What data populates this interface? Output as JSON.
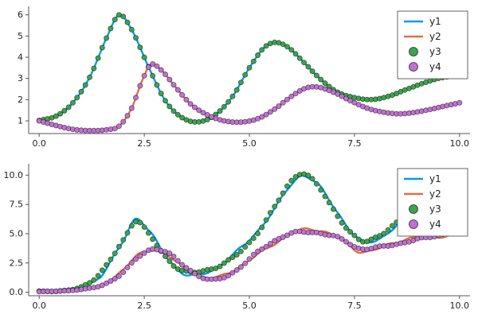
{
  "figure": {
    "background": "#ffffff"
  },
  "chart_data": [
    {
      "id": "top",
      "type": "line",
      "title": "",
      "xlabel": "",
      "ylabel": "",
      "xlim": [
        0,
        10
      ],
      "ylim": [
        0.4,
        6.25
      ],
      "grid": false,
      "xticks": {
        "values": [
          0,
          2.5,
          5,
          7.5,
          10
        ],
        "labels": [
          "0.0",
          "2.5",
          "5.0",
          "7.5",
          "10.0"
        ]
      },
      "yticks": {
        "values": [
          1,
          2,
          3,
          4,
          5,
          6
        ],
        "labels": [
          "1",
          "2",
          "3",
          "4",
          "5",
          "6"
        ]
      },
      "legend": {
        "position": "top-right",
        "entries": [
          "y1",
          "y2",
          "y3",
          "y4"
        ]
      },
      "series": [
        {
          "name": "y1",
          "kind": "line",
          "color": "#009af9",
          "noise": 0,
          "phase": 0,
          "keypoints": [
            [
              0,
              1.02
            ],
            [
              0.4,
              1.22
            ],
            [
              0.8,
              1.85
            ],
            [
              1.2,
              3.05
            ],
            [
              1.6,
              4.9
            ],
            [
              1.9,
              6.0
            ],
            [
              2.2,
              5.3
            ],
            [
              2.6,
              3.55
            ],
            [
              3.0,
              1.95
            ],
            [
              3.4,
              1.15
            ],
            [
              3.8,
              0.95
            ],
            [
              4.2,
              1.3
            ],
            [
              4.6,
              2.15
            ],
            [
              5.0,
              3.5
            ],
            [
              5.35,
              4.45
            ],
            [
              5.6,
              4.7
            ],
            [
              5.9,
              4.5
            ],
            [
              6.3,
              3.75
            ],
            [
              6.7,
              2.95
            ],
            [
              7.1,
              2.35
            ],
            [
              7.5,
              2.1
            ],
            [
              7.9,
              2.0
            ],
            [
              8.3,
              2.15
            ],
            [
              8.7,
              2.45
            ],
            [
              9.1,
              2.75
            ],
            [
              9.5,
              3.0
            ],
            [
              10,
              3.15
            ]
          ]
        },
        {
          "name": "y2",
          "kind": "line",
          "color": "#e26f46",
          "noise": 0,
          "phase": 0,
          "keypoints": [
            [
              0,
              1.0
            ],
            [
              0.4,
              0.78
            ],
            [
              0.8,
              0.6
            ],
            [
              1.2,
              0.54
            ],
            [
              1.6,
              0.58
            ],
            [
              1.9,
              0.75
            ],
            [
              2.2,
              1.6
            ],
            [
              2.45,
              2.9
            ],
            [
              2.65,
              3.65
            ],
            [
              2.9,
              3.4
            ],
            [
              3.2,
              2.7
            ],
            [
              3.6,
              1.8
            ],
            [
              4.0,
              1.28
            ],
            [
              4.4,
              1.0
            ],
            [
              4.8,
              0.94
            ],
            [
              5.2,
              1.1
            ],
            [
              5.6,
              1.55
            ],
            [
              6.0,
              2.15
            ],
            [
              6.35,
              2.55
            ],
            [
              6.6,
              2.6
            ],
            [
              7.0,
              2.35
            ],
            [
              7.4,
              1.95
            ],
            [
              7.8,
              1.6
            ],
            [
              8.2,
              1.4
            ],
            [
              8.6,
              1.33
            ],
            [
              9.0,
              1.42
            ],
            [
              9.4,
              1.58
            ],
            [
              9.7,
              1.72
            ],
            [
              10,
              1.85
            ]
          ]
        },
        {
          "name": "y3",
          "kind": "scatter",
          "color": "#3da44d",
          "base": "y1",
          "step": 0.1,
          "noise": 0,
          "phase": 0
        },
        {
          "name": "y4",
          "kind": "scatter",
          "color": "#c271d2",
          "base": "y2",
          "step": 0.1,
          "noise": 0,
          "phase": 0
        }
      ]
    },
    {
      "id": "bottom",
      "type": "line",
      "title": "",
      "xlabel": "",
      "ylabel": "",
      "xlim": [
        0,
        10
      ],
      "ylim": [
        -0.3,
        10.7
      ],
      "grid": false,
      "xticks": {
        "values": [
          0,
          2.5,
          5,
          7.5,
          10
        ],
        "labels": [
          "0.0",
          "2.5",
          "5.0",
          "7.5",
          "10.0"
        ]
      },
      "yticks": {
        "values": [
          0,
          2.5,
          5,
          7.5,
          10
        ],
        "labels": [
          "0.0",
          "2.5",
          "5.0",
          "7.5",
          "10.0"
        ]
      },
      "legend": {
        "position": "top-right",
        "entries": [
          "y1",
          "y2",
          "y3",
          "y4"
        ]
      },
      "series": [
        {
          "name": "y1",
          "kind": "line",
          "color": "#009af9",
          "noise": 0.3,
          "phase": 0.7,
          "keypoints": [
            [
              0,
              0.1
            ],
            [
              0.5,
              0.12
            ],
            [
              1.0,
              0.45
            ],
            [
              1.5,
              1.7
            ],
            [
              2.0,
              4.4
            ],
            [
              2.3,
              6.2
            ],
            [
              2.6,
              5.1
            ],
            [
              3.0,
              3.1
            ],
            [
              3.4,
              1.8
            ],
            [
              3.7,
              1.55
            ],
            [
              4.0,
              1.8
            ],
            [
              4.4,
              2.5
            ],
            [
              4.8,
              3.6
            ],
            [
              5.2,
              5.2
            ],
            [
              5.6,
              7.2
            ],
            [
              6.0,
              9.4
            ],
            [
              6.25,
              10.1
            ],
            [
              6.6,
              9.2
            ],
            [
              7.0,
              7.2
            ],
            [
              7.4,
              5.2
            ],
            [
              7.7,
              4.3
            ],
            [
              8.0,
              4.6
            ],
            [
              8.4,
              5.5
            ],
            [
              8.8,
              6.7
            ],
            [
              9.2,
              7.9
            ],
            [
              9.6,
              8.9
            ],
            [
              10,
              9.8
            ]
          ]
        },
        {
          "name": "y2",
          "kind": "line",
          "color": "#e26f46",
          "noise": 0.26,
          "phase": 2.2,
          "keypoints": [
            [
              0,
              0.06
            ],
            [
              0.5,
              0.1
            ],
            [
              1.0,
              0.22
            ],
            [
              1.5,
              0.6
            ],
            [
              2.0,
              1.8
            ],
            [
              2.4,
              3.2
            ],
            [
              2.7,
              3.7
            ],
            [
              3.0,
              3.35
            ],
            [
              3.4,
              2.3
            ],
            [
              3.8,
              1.4
            ],
            [
              4.1,
              1.1
            ],
            [
              4.5,
              1.55
            ],
            [
              4.9,
              2.5
            ],
            [
              5.3,
              3.6
            ],
            [
              5.7,
              4.5
            ],
            [
              6.1,
              5.1
            ],
            [
              6.5,
              5.25
            ],
            [
              6.9,
              4.95
            ],
            [
              7.3,
              4.3
            ],
            [
              7.6,
              3.65
            ],
            [
              8.0,
              3.7
            ],
            [
              8.4,
              4.1
            ],
            [
              8.8,
              4.45
            ],
            [
              9.2,
              4.7
            ],
            [
              9.6,
              4.9
            ],
            [
              10,
              5.05
            ]
          ]
        },
        {
          "name": "y3",
          "kind": "scatter",
          "color": "#3da44d",
          "base": "y1",
          "step": 0.1,
          "noise": 0.22,
          "phase": 3.6
        },
        {
          "name": "y4",
          "kind": "scatter",
          "color": "#c271d2",
          "base": "y2",
          "step": 0.1,
          "noise": 0.2,
          "phase": 5.1
        }
      ]
    }
  ]
}
